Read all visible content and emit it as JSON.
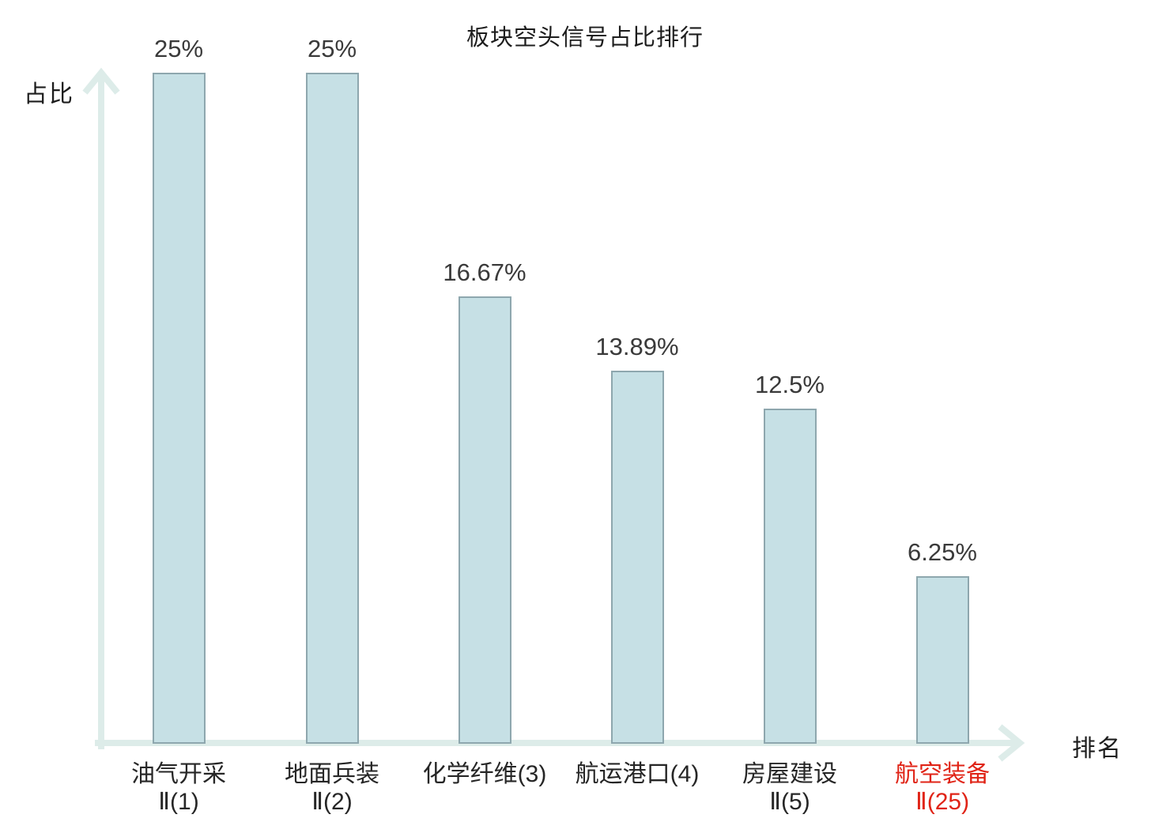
{
  "chart_data": {
    "type": "bar",
    "title": "板块空头信号占比排行",
    "ylabel": "占比",
    "xlabel": "排名",
    "categories": [
      "油气开采Ⅱ(1)",
      "地面兵装Ⅱ(2)",
      "化学纤维(3)",
      "航运港口(4)",
      "房屋建设Ⅱ(5)",
      "航空装备Ⅱ(25)"
    ],
    "values": [
      25,
      25,
      16.67,
      13.89,
      12.5,
      6.25
    ],
    "value_labels": [
      "25%",
      "25%",
      "16.67%",
      "13.89%",
      "12.5%",
      "6.25%"
    ],
    "ylim": [
      0,
      25
    ],
    "grid": false,
    "legend": "none",
    "bar_fill_color": "#c6e0e5",
    "bar_border_color": "#8ea7ae",
    "axis_color": "#ddece9",
    "value_text_color": "#3a3a3a",
    "category_text_color": "#262626",
    "highlight_color": "#e02417",
    "highlight_index": 5,
    "bars": [
      {
        "line1": "油气开采",
        "line2": "Ⅱ(1)",
        "value": 25,
        "value_label": "25%",
        "label_color": "#262626"
      },
      {
        "line1": "地面兵装",
        "line2": "Ⅱ(2)",
        "value": 25,
        "value_label": "25%",
        "label_color": "#262626"
      },
      {
        "line1": "化学纤维(3)",
        "line2": "",
        "value": 16.67,
        "value_label": "16.67%",
        "label_color": "#262626"
      },
      {
        "line1": "航运港口(4)",
        "line2": "",
        "value": 13.89,
        "value_label": "13.89%",
        "label_color": "#262626"
      },
      {
        "line1": "房屋建设",
        "line2": "Ⅱ(5)",
        "value": 12.5,
        "value_label": "12.5%",
        "label_color": "#262626"
      },
      {
        "line1": "航空装备",
        "line2": "Ⅱ(25)",
        "value": 6.25,
        "value_label": "6.25%",
        "label_color": "#e02417"
      }
    ]
  }
}
